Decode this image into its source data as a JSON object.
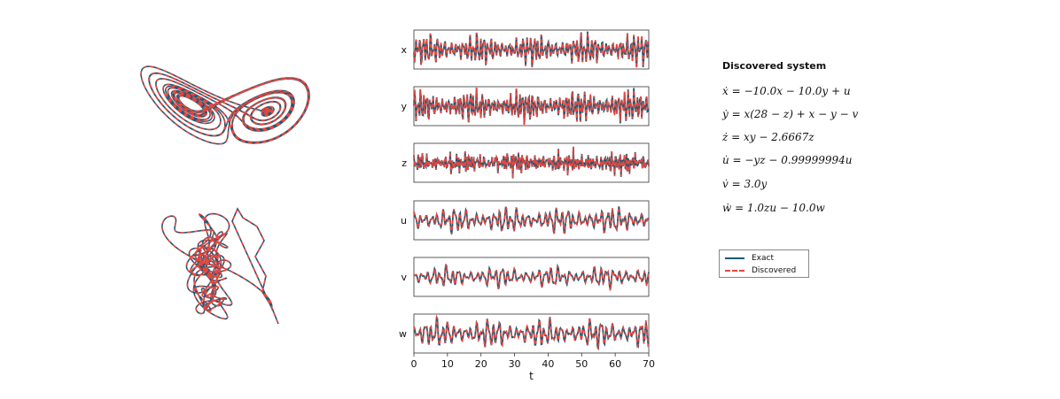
{
  "chart_data": [
    {
      "type": "line",
      "panel": "phase-portrait-3d-upper",
      "description_visible": "butterfly attractor trajectory",
      "series": [
        {
          "name": "Exact",
          "color": "#1f5a73",
          "style": "solid"
        },
        {
          "name": "Discovered",
          "color": "#e8463f",
          "style": "dashed"
        }
      ]
    },
    {
      "type": "line",
      "panel": "phase-portrait-3d-lower",
      "series": [
        {
          "name": "Exact",
          "color": "#1f5a73",
          "style": "solid"
        },
        {
          "name": "Discovered",
          "color": "#e8463f",
          "style": "dashed"
        }
      ]
    },
    {
      "type": "line",
      "panel": "time-series",
      "xlabel": "t",
      "xlim": [
        0,
        70
      ],
      "xticks": [
        "0",
        "10",
        "20",
        "30",
        "40",
        "50",
        "60",
        "70"
      ],
      "panels": [
        "x",
        "y",
        "z",
        "u",
        "v",
        "w"
      ],
      "series": [
        {
          "name": "Exact",
          "color": "#1f5a73",
          "style": "solid"
        },
        {
          "name": "Discovered",
          "color": "#e8463f",
          "style": "dashed"
        }
      ]
    }
  ],
  "equations": {
    "title": "Discovered system",
    "lines": [
      "ẋ = −10.0x − 10.0y + u",
      "ẏ = x(28 − z) + x − y − v",
      "ż = xy − 2.6667z",
      "u̇ = −yz − 0.99999994u",
      "v̇ = 3.0y",
      "ẇ = 1.0zu − 10.0w"
    ]
  },
  "legend": {
    "items": [
      {
        "label": "Exact",
        "color": "#1f5a73",
        "style": "solid"
      },
      {
        "label": "Discovered",
        "color": "#e8463f",
        "style": "dashed"
      }
    ]
  }
}
